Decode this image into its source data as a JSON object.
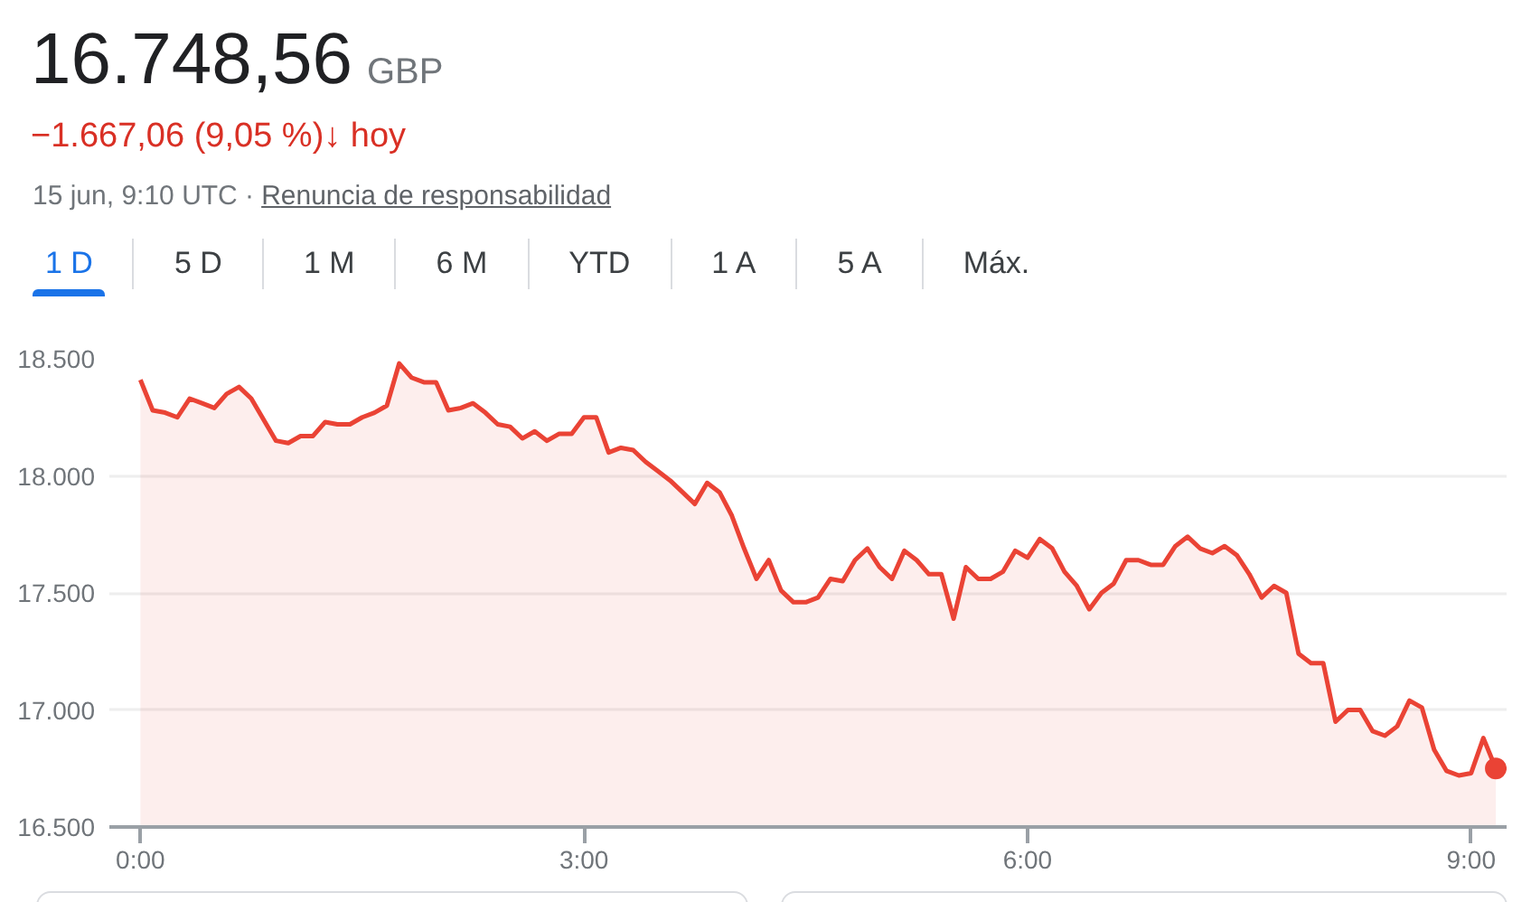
{
  "chart_data": {
    "type": "area",
    "title": "16.748,56",
    "subtitle": "GBP",
    "annotations": [
      "−1.667,06 (9,05 %)↓ hoy",
      "15 jun, 9:10 UTC ·",
      "Renuncia de responsabilidad",
      "1 D",
      "5 D",
      "1 M",
      "6 M",
      "YTD",
      "1 A",
      "5 A",
      "Máx."
    ],
    "series": [
      {
        "color": "#ea4335",
        "x": [
          0,
          0.083,
          0.167,
          0.25,
          0.333,
          0.417,
          0.5,
          0.583,
          0.667,
          0.75,
          0.833,
          0.917,
          1,
          1.083,
          1.167,
          1.25,
          1.333,
          1.417,
          1.5,
          1.583,
          1.667,
          1.75,
          1.833,
          1.917,
          2,
          2.083,
          2.167,
          2.25,
          2.333,
          2.417,
          2.5,
          2.583,
          2.667,
          2.75,
          2.833,
          2.917,
          3,
          3.083,
          3.167,
          3.25,
          3.333,
          3.417,
          3.5,
          3.583,
          3.667,
          3.75,
          3.833,
          3.917,
          4,
          4.083,
          4.167,
          4.25,
          4.333,
          4.417,
          4.5,
          4.583,
          4.667,
          4.75,
          4.833,
          4.917,
          5,
          5.083,
          5.167,
          5.25,
          5.333,
          5.417,
          5.5,
          5.583,
          5.667,
          5.75,
          5.833,
          5.917,
          6,
          6.083,
          6.167,
          6.25,
          6.333,
          6.417,
          6.5,
          6.583,
          6.667,
          6.75,
          6.833,
          6.917,
          7,
          7.083,
          7.167,
          7.25,
          7.333,
          7.417,
          7.5,
          7.583,
          7.667,
          7.75,
          7.833,
          7.917,
          8,
          8.083,
          8.167,
          8.25,
          8.333,
          8.417,
          8.5,
          8.583,
          8.667,
          8.75,
          8.833,
          8.917,
          9,
          9.083,
          9.167
        ],
        "values": [
          18410,
          18280,
          18270,
          18250,
          18330,
          18310,
          18290,
          18350,
          18380,
          18330,
          18240,
          18150,
          18140,
          18170,
          18170,
          18230,
          18220,
          18220,
          18250,
          18270,
          18300,
          18480,
          18420,
          18400,
          18400,
          18280,
          18290,
          18310,
          18270,
          18220,
          18210,
          18160,
          18190,
          18150,
          18180,
          18180,
          18250,
          18250,
          18100,
          18120,
          18110,
          18060,
          18020,
          17980,
          17930,
          17880,
          17970,
          17930,
          17830,
          17690,
          17560,
          17640,
          17510,
          17460,
          17460,
          17480,
          17560,
          17550,
          17640,
          17690,
          17610,
          17560,
          17680,
          17640,
          17580,
          17580,
          17390,
          17610,
          17560,
          17560,
          17590,
          17680,
          17650,
          17730,
          17690,
          17590,
          17530,
          17430,
          17500,
          17540,
          17640,
          17640,
          17620,
          17620,
          17700,
          17740,
          17690,
          17670,
          17700,
          17660,
          17580,
          17480,
          17530,
          17500,
          17240,
          17200,
          17200,
          16950,
          17000,
          17000,
          16910,
          16890,
          16930,
          17040,
          17010,
          16830,
          16740,
          16720,
          16730,
          16880,
          16750
        ]
      },
      {
        "type": "scatter",
        "color": "#ea4335",
        "marker": "circle",
        "x": [
          9.167
        ],
        "values": [
          16750
        ]
      }
    ],
    "xlim": [
      -0.21,
      9.24
    ],
    "ylim": [
      16500,
      18500
    ],
    "xticks": [
      {
        "value": 0,
        "label": "0:00"
      },
      {
        "value": 3,
        "label": "3:00"
      },
      {
        "value": 6,
        "label": "6:00"
      },
      {
        "value": 9,
        "label": "9:00"
      }
    ],
    "yticks": [
      {
        "value": 16500,
        "label": "16.500"
      },
      {
        "value": 17000,
        "label": "17.000"
      },
      {
        "value": 17500,
        "label": "17.500"
      },
      {
        "value": 18000,
        "label": "18.000"
      },
      {
        "value": 18500,
        "label": "18.500"
      }
    ],
    "grid": "y"
  }
}
